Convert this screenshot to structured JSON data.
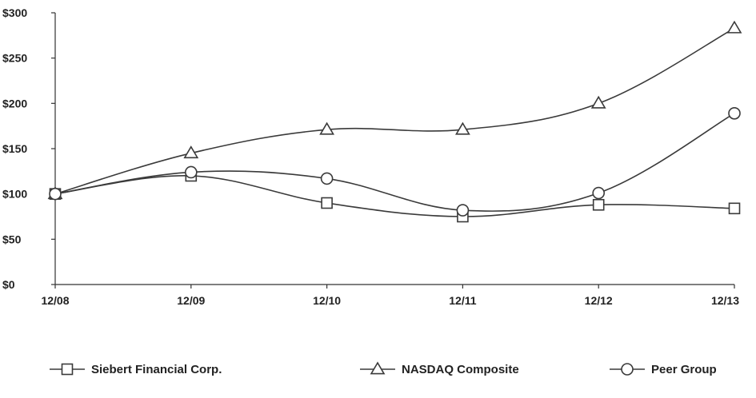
{
  "chart_data": {
    "type": "line",
    "categories": [
      "12/08",
      "12/09",
      "12/10",
      "12/11",
      "12/12",
      "12/13"
    ],
    "y_ticks": [
      "$0",
      "$50",
      "$100",
      "$150",
      "$200",
      "$250",
      "$300"
    ],
    "y_tick_values": [
      0,
      50,
      100,
      150,
      200,
      250,
      300
    ],
    "ylim": [
      0,
      300
    ],
    "grid": false,
    "legend_position": "bottom",
    "series": [
      {
        "name": "Siebert Financial Corp.",
        "marker": "square",
        "values": [
          100,
          120,
          90,
          75,
          88,
          84
        ]
      },
      {
        "name": "NASDAQ Composite",
        "marker": "triangle",
        "values": [
          100,
          145,
          171,
          171,
          200,
          283
        ]
      },
      {
        "name": "Peer Group",
        "marker": "circle",
        "values": [
          100,
          124,
          117,
          82,
          101,
          189
        ]
      }
    ]
  }
}
